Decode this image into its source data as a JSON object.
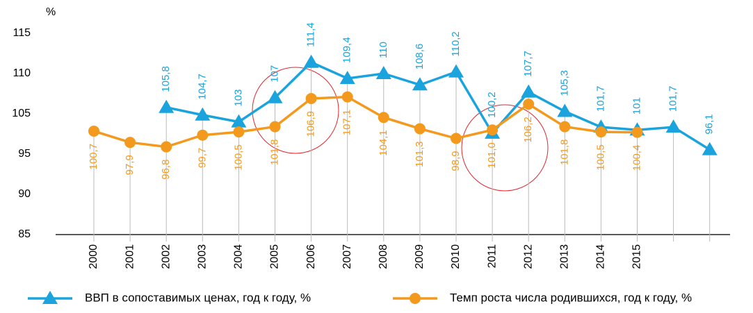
{
  "chart_data": {
    "type": "line",
    "y_label": "%",
    "categories": [
      "2000",
      "2001",
      "2002",
      "2003",
      "2004",
      "2005",
      "2006",
      "2007",
      "2008",
      "2009",
      "2010",
      "2011",
      "2012",
      "2013",
      "2014",
      "2015",
      null,
      null
    ],
    "series": [
      {
        "name": "ВВП в сопоставимых ценах, год к году, %",
        "color": "#1aa3dc",
        "marker": "triangle",
        "values": [
          null,
          null,
          105.8,
          104.7,
          103,
          107,
          111.4,
          109.4,
          110,
          108.6,
          110.2,
          100.2,
          107.7,
          105.3,
          101.7,
          101,
          101.7,
          96.1
        ],
        "value_labels": [
          null,
          null,
          "105,8",
          "104,7",
          "103",
          "107",
          "111,4",
          "109,4",
          "110",
          "108,6",
          "110,2",
          "100,2",
          "107,7",
          "105,3",
          "101,7",
          "101",
          "101,7",
          "96,1"
        ]
      },
      {
        "name": "Темп роста числа родившихся, год к году, %",
        "color": "#f39a1e",
        "marker": "circle",
        "values": [
          100.7,
          97.9,
          96.8,
          99.7,
          100.5,
          101.8,
          106.9,
          107.1,
          104.1,
          101.3,
          98.9,
          101.0,
          106.2,
          101.8,
          100.5,
          100.4,
          null,
          null
        ],
        "value_labels": [
          "100,7",
          "97,9",
          "96,8",
          "99,7",
          "100,5",
          "101,8",
          "106,9",
          "107,1",
          "104,1",
          "101,3",
          "98,9",
          "101,0",
          "106,2",
          "101,8",
          "100,5",
          "100,4",
          null,
          null
        ]
      }
    ],
    "ylim": [
      85,
      115
    ],
    "yticks": [
      85,
      90,
      95,
      105,
      110,
      115
    ],
    "legend": "bottom"
  }
}
